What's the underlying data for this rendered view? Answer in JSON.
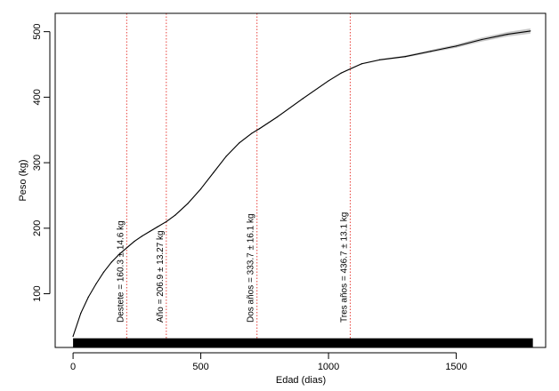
{
  "chart_data": {
    "type": "line",
    "title": "",
    "xlabel": "Edad (dias)",
    "ylabel": "Peso (kg)",
    "xlim": [
      -70,
      1850
    ],
    "ylim": [
      18,
      528
    ],
    "x_ticks": [
      0,
      500,
      1000,
      1500
    ],
    "y_ticks": [
      100,
      200,
      300,
      400,
      500
    ],
    "grid": false,
    "legend": "none",
    "colors": {
      "line": "#000000",
      "band": "#bbbbbb",
      "vline": "#e8423c",
      "rug": "#000000"
    },
    "series": [
      {
        "x": [
          0,
          30,
          60,
          90,
          120,
          150,
          180,
          210,
          240,
          270,
          300,
          330,
          365,
          400,
          450,
          500,
          550,
          600,
          650,
          700,
          730,
          800,
          900,
          1000,
          1050,
          1090,
          1130,
          1200,
          1300,
          1400,
          1500,
          1600,
          1700,
          1790
        ],
        "y": [
          35,
          70,
          95,
          115,
          133,
          148,
          160,
          170,
          180,
          188,
          195,
          202,
          210,
          220,
          238,
          260,
          285,
          310,
          330,
          345,
          352,
          370,
          398,
          425,
          437,
          444,
          451,
          457,
          462,
          470,
          478,
          488,
          496,
          501
        ],
        "band_halfwidth": [
          0,
          1,
          1,
          1,
          1,
          1,
          1,
          1,
          1,
          1,
          1,
          1,
          1,
          1,
          1,
          1,
          1,
          1,
          1,
          1,
          1,
          1,
          1,
          1,
          1,
          1,
          1,
          1,
          1.5,
          2,
          2.5,
          3,
          3.5,
          4
        ]
      }
    ],
    "vertical_lines": [
      {
        "x": 210,
        "label": "Destete = 160.3 ± 14.6 kg"
      },
      {
        "x": 365,
        "label": "Año = 206.9 ± 13.27 kg"
      },
      {
        "x": 720,
        "label": "Dos años = 333.7 ± 16.1 kg"
      },
      {
        "x": 1085,
        "label": "Tres años = 436.7 ± 13.1 kg"
      }
    ],
    "rug": {
      "x_start": 0,
      "x_end": 1800,
      "y_bottom": 18,
      "y_top": 32
    }
  }
}
